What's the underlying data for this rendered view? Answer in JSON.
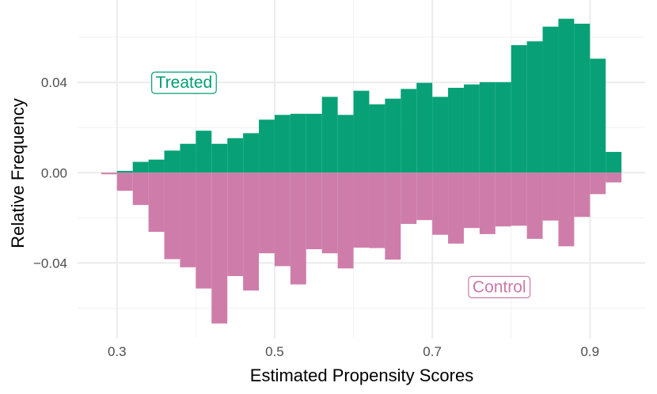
{
  "chart_data": {
    "type": "bar",
    "xlabel": "Estimated Propensity Scores",
    "ylabel": "Relative Frequency",
    "xlim": [
      0.25,
      0.97
    ],
    "ylim": [
      -0.0735,
      0.0765
    ],
    "x_ticks": [
      {
        "value": 0.3,
        "label": "0.3"
      },
      {
        "value": 0.5,
        "label": "0.5"
      },
      {
        "value": 0.7,
        "label": "0.7"
      },
      {
        "value": 0.9,
        "label": "0.9"
      }
    ],
    "y_ticks": [
      {
        "value": 0.04,
        "label": "0.04"
      },
      {
        "value": 0.0,
        "label": "0.00"
      },
      {
        "value": -0.04,
        "label": "−0.04"
      }
    ],
    "bin_width": 0.02,
    "bin_starts": [
      0.28,
      0.3,
      0.32,
      0.34,
      0.36,
      0.38,
      0.4,
      0.42,
      0.44,
      0.46,
      0.48,
      0.5,
      0.52,
      0.54,
      0.56,
      0.58,
      0.6,
      0.62,
      0.64,
      0.66,
      0.68,
      0.7,
      0.72,
      0.74,
      0.76,
      0.78,
      0.8,
      0.82,
      0.84,
      0.86,
      0.88,
      0.9,
      0.92
    ],
    "series": [
      {
        "name": "Treated",
        "color": "#009E73",
        "values": [
          0.0,
          0.0008,
          0.0048,
          0.0058,
          0.0098,
          0.0128,
          0.0186,
          0.0128,
          0.0153,
          0.0175,
          0.0235,
          0.0256,
          0.0261,
          0.0261,
          0.0336,
          0.0256,
          0.0363,
          0.0303,
          0.0328,
          0.0371,
          0.0398,
          0.0336,
          0.0376,
          0.0391,
          0.0401,
          0.0401,
          0.0565,
          0.0582,
          0.0647,
          0.0682,
          0.066,
          0.0505,
          0.0092
        ]
      },
      {
        "name": "Control",
        "color": "#CC79A7",
        "values": [
          -0.0007,
          -0.008,
          -0.0143,
          -0.0262,
          -0.0383,
          -0.0419,
          -0.0513,
          -0.0668,
          -0.0458,
          -0.0522,
          -0.0357,
          -0.0414,
          -0.0495,
          -0.0339,
          -0.0357,
          -0.0424,
          -0.0332,
          -0.0334,
          -0.0385,
          -0.0227,
          -0.021,
          -0.0275,
          -0.0314,
          -0.0245,
          -0.0272,
          -0.0238,
          -0.0235,
          -0.0293,
          -0.0212,
          -0.0326,
          -0.0196,
          -0.0095,
          -0.0043
        ]
      }
    ],
    "annotations": [
      {
        "text": "Treated",
        "x": 0.385,
        "y": 0.04,
        "color": "#009E73"
      },
      {
        "text": "Control",
        "x": 0.785,
        "y": -0.0505,
        "color": "#CC79A7"
      }
    ],
    "grid": true
  }
}
